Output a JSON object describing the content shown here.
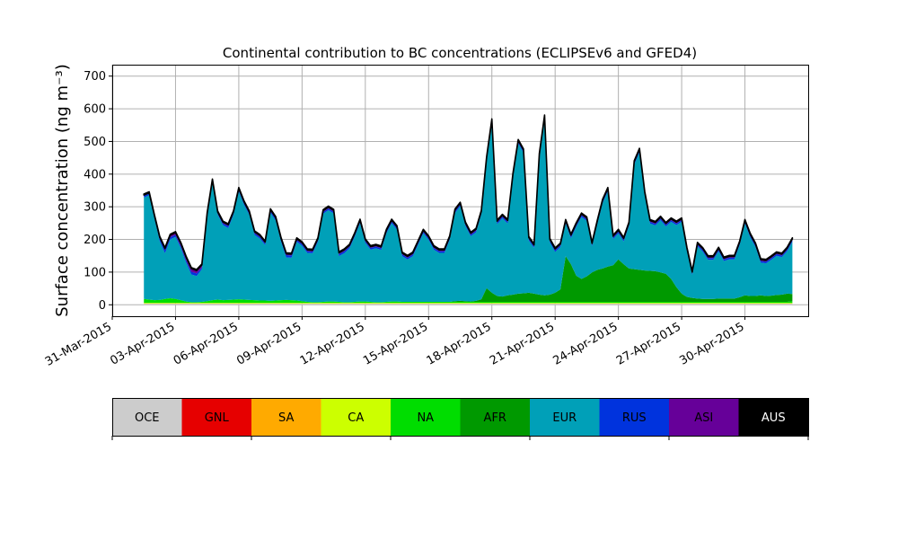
{
  "chart_data": {
    "type": "area",
    "stacked": true,
    "title": "Continental contribution to BC concentrations (ECLIPSEv6 and GFED4)",
    "ylabel": "Surface concentration (ng m⁻³)",
    "xlabel": "",
    "ylim": [
      -35,
      735
    ],
    "xlim": [
      "2015-03-31T00:00",
      "2015-05-03T00:00"
    ],
    "yticks": [
      0,
      100,
      200,
      300,
      400,
      500,
      600,
      700
    ],
    "xtick_labels": [
      "31-Mar-2015",
      "03-Apr-2015",
      "06-Apr-2015",
      "09-Apr-2015",
      "12-Apr-2015",
      "15-Apr-2015",
      "18-Apr-2015",
      "21-Apr-2015",
      "24-Apr-2015",
      "27-Apr-2015",
      "30-Apr-2015"
    ],
    "grid": true,
    "legend_placement": "colorbar-below",
    "x_start": "2015-04-01T12:00",
    "x_step_hours": 6,
    "series": [
      {
        "name": "OCE",
        "color": "#cccccc",
        "values": [
          3,
          3,
          3,
          3,
          3,
          3,
          3,
          3,
          3,
          3,
          3,
          3,
          3,
          3,
          3,
          3,
          3,
          3,
          3,
          3,
          3,
          3,
          3,
          3,
          3,
          3,
          3,
          3,
          3,
          3,
          3,
          3,
          3,
          3,
          3,
          3,
          3,
          3,
          3,
          3,
          3,
          3,
          3,
          3,
          3,
          3,
          3,
          3,
          3,
          3,
          3,
          3,
          3,
          3,
          3,
          3,
          3,
          3,
          3,
          3,
          3,
          3,
          3,
          3,
          3,
          3,
          3,
          3,
          3,
          3,
          3,
          3,
          3,
          3,
          3,
          3,
          3,
          3,
          3,
          3,
          3,
          3,
          3,
          3,
          3,
          3,
          3,
          3,
          3,
          3,
          3,
          3,
          3,
          3,
          3,
          3,
          3,
          3,
          3,
          3,
          3,
          3,
          3,
          3,
          3,
          3,
          3,
          3,
          3,
          3,
          3,
          3,
          3,
          3,
          3,
          3,
          3,
          3,
          3,
          3,
          3,
          3,
          3,
          3
        ]
      },
      {
        "name": "GNL",
        "color": "#e60000",
        "values": [
          0,
          0,
          0,
          0,
          0,
          0,
          0,
          0,
          0,
          0,
          0,
          0,
          0,
          0,
          0,
          0,
          0,
          0,
          0,
          0,
          0,
          0,
          0,
          0,
          0,
          0,
          0,
          0,
          0,
          0,
          0,
          0,
          0,
          0,
          0,
          0,
          0,
          0,
          0,
          0,
          0,
          0,
          0,
          0,
          0,
          0,
          0,
          0,
          0,
          0,
          0,
          0,
          0,
          0,
          0,
          0,
          0,
          0,
          0,
          0,
          0,
          0,
          0,
          0,
          0,
          0,
          0,
          0,
          0,
          0,
          0,
          0,
          0,
          0,
          0,
          0,
          0,
          0,
          0,
          0,
          0,
          0,
          0,
          0,
          0,
          0,
          0,
          0,
          0,
          0,
          0,
          0,
          0,
          0,
          0,
          0,
          0,
          0,
          0,
          0,
          0,
          0,
          0,
          0,
          0,
          0,
          0,
          0,
          0,
          0,
          0,
          0,
          0,
          0,
          0,
          0,
          0,
          0,
          0,
          0,
          0,
          0,
          0,
          0
        ]
      },
      {
        "name": "SA",
        "color": "#ffaa00",
        "values": [
          1,
          1,
          1,
          1,
          1,
          1,
          1,
          1,
          1,
          1,
          1,
          1,
          1,
          1,
          1,
          1,
          1,
          1,
          1,
          1,
          1,
          1,
          1,
          1,
          1,
          1,
          1,
          1,
          1,
          1,
          1,
          1,
          1,
          1,
          1,
          1,
          1,
          1,
          1,
          1,
          1,
          1,
          1,
          1,
          1,
          1,
          1,
          1,
          1,
          1,
          1,
          1,
          1,
          1,
          1,
          1,
          1,
          1,
          1,
          1,
          1,
          1,
          1,
          1,
          1,
          1,
          1,
          1,
          1,
          1,
          1,
          1,
          1,
          1,
          1,
          1,
          1,
          1,
          1,
          1,
          1,
          1,
          1,
          1,
          1,
          1,
          1,
          1,
          1,
          1,
          1,
          1,
          1,
          1,
          1,
          1,
          1,
          1,
          1,
          1,
          1,
          1,
          1,
          1,
          1,
          1,
          1,
          1,
          1,
          1,
          1,
          1,
          1,
          1,
          1,
          1,
          1,
          1,
          1,
          1,
          1,
          1,
          1,
          1
        ]
      },
      {
        "name": "CA",
        "color": "#ccff00",
        "values": [
          2,
          2,
          2,
          2,
          2,
          2,
          2,
          2,
          2,
          2,
          2,
          2,
          2,
          2,
          2,
          2,
          2,
          2,
          2,
          2,
          2,
          2,
          2,
          2,
          2,
          2,
          2,
          2,
          2,
          2,
          2,
          2,
          2,
          2,
          2,
          2,
          2,
          2,
          2,
          2,
          2,
          2,
          2,
          2,
          2,
          2,
          2,
          2,
          2,
          2,
          2,
          2,
          2,
          2,
          2,
          2,
          2,
          2,
          2,
          2,
          2,
          2,
          2,
          2,
          2,
          2,
          2,
          2,
          2,
          2,
          2,
          2,
          2,
          2,
          2,
          2,
          2,
          2,
          2,
          2,
          2,
          2,
          2,
          2,
          2,
          2,
          2,
          2,
          2,
          2,
          2,
          2,
          2,
          2,
          2,
          2,
          2,
          2,
          2,
          2,
          2,
          2,
          2,
          2,
          2,
          2,
          2,
          2,
          2,
          2,
          2,
          2,
          2,
          2,
          2,
          2,
          2,
          2,
          2,
          2,
          2,
          2,
          2,
          2
        ]
      },
      {
        "name": "NA",
        "color": "#00dd00",
        "values": [
          12,
          10,
          8,
          9,
          12,
          14,
          12,
          8,
          4,
          2,
          2,
          3,
          5,
          8,
          10,
          8,
          9,
          10,
          11,
          10,
          9,
          8,
          7,
          7,
          6,
          7,
          8,
          9,
          8,
          7,
          5,
          3,
          2,
          2,
          3,
          4,
          4,
          3,
          2,
          2,
          3,
          4,
          4,
          3,
          2,
          2,
          3,
          4,
          4,
          3,
          3,
          3,
          3,
          3,
          3,
          3,
          3,
          3,
          3,
          3,
          3,
          3,
          3,
          3,
          3,
          3,
          3,
          3,
          3,
          3,
          3,
          3,
          3,
          3,
          3,
          3,
          3,
          3,
          3,
          3,
          3,
          3,
          3,
          3,
          3,
          3,
          3,
          3,
          3,
          3,
          3,
          3,
          3,
          3,
          3,
          3,
          3,
          3,
          3,
          3,
          3,
          3,
          3,
          3,
          3,
          3,
          3,
          3,
          3,
          3,
          3,
          3,
          3,
          3,
          3,
          3,
          3,
          3,
          3,
          3,
          3,
          3,
          3,
          5
        ]
      },
      {
        "name": "AFR",
        "color": "#009900",
        "values": [
          0,
          0,
          0,
          0,
          0,
          0,
          0,
          0,
          0,
          0,
          0,
          0,
          0,
          0,
          0,
          0,
          0,
          0,
          0,
          0,
          0,
          0,
          0,
          0,
          0,
          0,
          0,
          0,
          0,
          0,
          0,
          0,
          0,
          0,
          0,
          0,
          0,
          0,
          0,
          0,
          0,
          0,
          0,
          0,
          0,
          0,
          0,
          0,
          0,
          0,
          0,
          0,
          0,
          0,
          0,
          0,
          0,
          0,
          0,
          2,
          3,
          2,
          1,
          3,
          8,
          42,
          28,
          18,
          16,
          20,
          22,
          25,
          26,
          28,
          25,
          22,
          20,
          22,
          28,
          38,
          140,
          115,
          80,
          70,
          78,
          90,
          98,
          102,
          108,
          112,
          130,
          115,
          102,
          100,
          98,
          96,
          95,
          94,
          90,
          86,
          70,
          45,
          25,
          15,
          12,
          10,
          9,
          9,
          9,
          10,
          10,
          10,
          10,
          14,
          20,
          18,
          18,
          20,
          18,
          19,
          21,
          22,
          25,
          22
        ]
      },
      {
        "name": "EUR",
        "color": "#00a0b8",
        "values": [
          310,
          320,
          250,
          180,
          140,
          180,
          190,
          160,
          120,
          85,
          80,
          100,
          260,
          360,
          260,
          230,
          220,
          260,
          330,
          290,
          260,
          200,
          190,
          170,
          270,
          245,
          180,
          130,
          130,
          180,
          170,
          150,
          150,
          185,
          270,
          280,
          270,
          140,
          150,
          165,
          200,
          240,
          180,
          160,
          165,
          160,
          210,
          240,
          220,
          140,
          130,
          140,
          175,
          210,
          190,
          160,
          150,
          150,
          190,
          270,
          290,
          230,
          200,
          210,
          260,
          390,
          520,
          220,
          240,
          220,
          360,
          460,
          430,
          160,
          140,
          420,
          540,
          160,
          125,
          130,
          100,
          80,
          150,
          190,
          170,
          80,
          140,
          200,
          230,
          80,
          80,
          70,
          130,
          320,
          360,
          230,
          145,
          140,
          160,
          145,
          175,
          190,
          220,
          140,
          70,
          160,
          145,
          120,
          120,
          145,
          115,
          120,
          120,
          160,
          220,
          180,
          150,
          100,
          100,
          110,
          120,
          115,
          130,
          160
        ]
      },
      {
        "name": "RUS",
        "color": "#0033dd",
        "values": [
          6,
          5,
          7,
          8,
          9,
          7,
          6,
          6,
          7,
          8,
          8,
          5,
          4,
          4,
          4,
          5,
          6,
          5,
          5,
          5,
          5,
          5,
          5,
          5,
          5,
          5,
          6,
          7,
          7,
          5,
          5,
          5,
          5,
          5,
          5,
          5,
          5,
          6,
          6,
          5,
          5,
          5,
          5,
          5,
          5,
          5,
          5,
          5,
          5,
          5,
          5,
          5,
          5,
          5,
          5,
          5,
          5,
          5,
          5,
          5,
          5,
          5,
          5,
          5,
          5,
          5,
          5,
          5,
          5,
          5,
          5,
          5,
          5,
          5,
          5,
          5,
          5,
          5,
          5,
          5,
          5,
          5,
          5,
          5,
          5,
          5,
          5,
          5,
          5,
          5,
          5,
          5,
          5,
          5,
          5,
          5,
          5,
          5,
          5,
          5,
          5,
          5,
          5,
          5,
          5,
          5,
          5,
          5,
          5,
          5,
          5,
          5,
          5,
          5,
          5,
          5,
          5,
          5,
          5,
          5,
          5,
          5,
          5,
          5
        ]
      },
      {
        "name": "ASI",
        "color": "#660099",
        "values": [
          2,
          2,
          2,
          4,
          5,
          6,
          7,
          8,
          9,
          10,
          9,
          8,
          4,
          4,
          4,
          4,
          4,
          4,
          4,
          4,
          4,
          4,
          4,
          4,
          4,
          4,
          4,
          4,
          4,
          4,
          4,
          4,
          4,
          4,
          4,
          4,
          4,
          4,
          4,
          4,
          4,
          4,
          4,
          4,
          4,
          4,
          4,
          4,
          4,
          4,
          4,
          4,
          4,
          4,
          4,
          4,
          4,
          4,
          4,
          4,
          4,
          4,
          4,
          4,
          4,
          4,
          4,
          4,
          4,
          4,
          4,
          4,
          4,
          4,
          4,
          4,
          4,
          4,
          4,
          4,
          4,
          4,
          4,
          4,
          4,
          4,
          4,
          4,
          4,
          4,
          4,
          4,
          4,
          4,
          4,
          4,
          4,
          4,
          4,
          4,
          4,
          4,
          4,
          4,
          4,
          4,
          4,
          4,
          4,
          4,
          4,
          4,
          4,
          4,
          4,
          4,
          4,
          4,
          4,
          4,
          4,
          4,
          4,
          4
        ]
      },
      {
        "name": "AUS",
        "color": "#000000",
        "values": [
          3,
          3,
          3,
          3,
          3,
          3,
          3,
          3,
          3,
          3,
          3,
          3,
          3,
          3,
          3,
          3,
          3,
          3,
          3,
          3,
          3,
          3,
          3,
          3,
          3,
          3,
          3,
          3,
          3,
          3,
          3,
          3,
          3,
          3,
          3,
          3,
          3,
          3,
          3,
          3,
          3,
          3,
          3,
          3,
          3,
          3,
          3,
          3,
          3,
          3,
          3,
          3,
          3,
          3,
          3,
          3,
          3,
          3,
          3,
          3,
          3,
          3,
          3,
          3,
          3,
          3,
          3,
          3,
          3,
          3,
          3,
          3,
          3,
          3,
          3,
          3,
          3,
          3,
          3,
          3,
          3,
          3,
          3,
          3,
          3,
          3,
          3,
          3,
          3,
          3,
          3,
          3,
          3,
          3,
          3,
          3,
          3,
          3,
          3,
          3,
          3,
          3,
          3,
          3,
          3,
          3,
          3,
          3,
          3,
          3,
          3,
          3,
          3,
          3,
          3,
          3,
          3,
          3,
          3,
          3,
          3,
          3,
          3,
          3
        ]
      }
    ]
  }
}
